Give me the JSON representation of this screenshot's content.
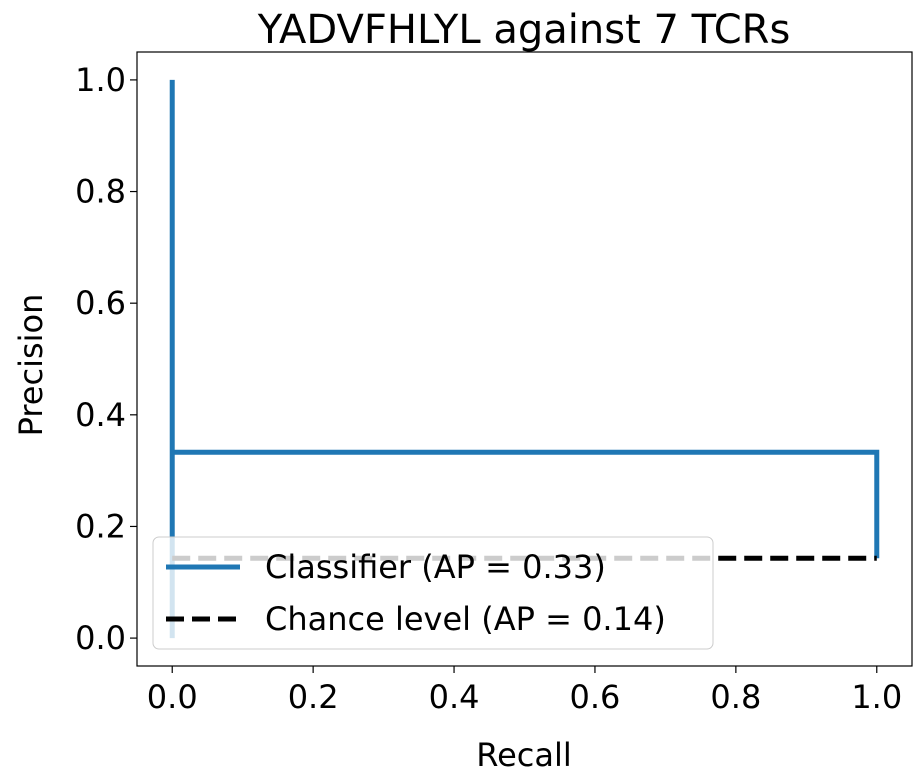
{
  "chart_data": {
    "type": "line",
    "title": "YADVFHLYL against 7 TCRs",
    "xlabel": "Recall",
    "ylabel": "Precision",
    "xlim": [
      -0.05,
      1.05
    ],
    "ylim": [
      -0.05,
      1.05
    ],
    "xticks": [
      0.0,
      0.2,
      0.4,
      0.6,
      0.8,
      1.0
    ],
    "xtick_labels": [
      "0.0",
      "0.2",
      "0.4",
      "0.6",
      "0.8",
      "1.0"
    ],
    "yticks": [
      0.0,
      0.2,
      0.4,
      0.6,
      0.8,
      1.0
    ],
    "ytick_labels": [
      "0.0",
      "0.2",
      "0.4",
      "0.6",
      "0.8",
      "1.0"
    ],
    "grid": false,
    "legend_position": "lower-left",
    "series": [
      {
        "name": "Classifier (AP = 0.33)",
        "style": "solid",
        "color": "#1f77b4",
        "x": [
          0.0,
          0.0,
          0.0,
          1.0,
          1.0
        ],
        "y": [
          0.0,
          1.0,
          0.333,
          0.333,
          0.143
        ]
      },
      {
        "name": "Chance level (AP = 0.14)",
        "style": "dashed",
        "color": "#000000",
        "x": [
          0.0,
          1.0
        ],
        "y": [
          0.143,
          0.143
        ]
      }
    ]
  }
}
